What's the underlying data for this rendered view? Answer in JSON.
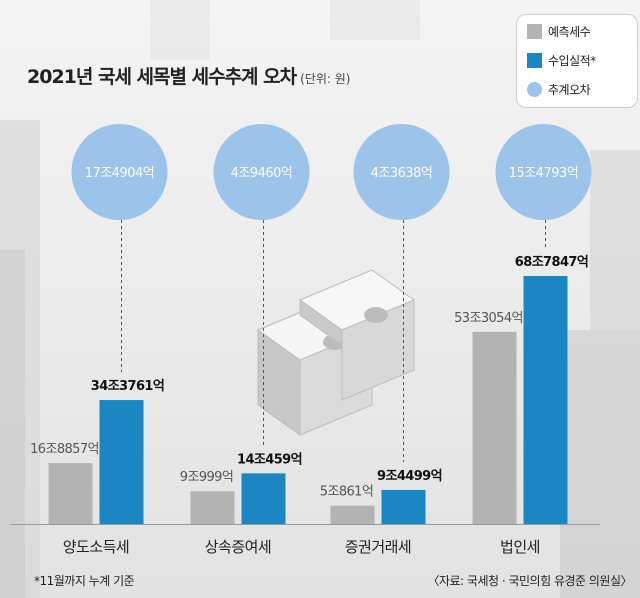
{
  "chart_data": {
    "type": "bar",
    "title": "2021년 국세 세목별 세수추계 오차",
    "unit_label": "(단위: 원)",
    "categories": [
      "양도소득세",
      "상속증여세",
      "증권거래세",
      "법인세"
    ],
    "series": [
      {
        "name": "예측세수",
        "color": "#b3b3b3",
        "values": [
          16.8857,
          9.0999,
          5.0861,
          53.3054
        ],
        "labels": [
          "16조8857억",
          "9조999억",
          "5조861억",
          "53조3054억"
        ]
      },
      {
        "name": "수입실적*",
        "color": "#1a87c2",
        "values": [
          34.3761,
          14.0459,
          9.4499,
          68.7847
        ],
        "labels": [
          "34조3761억",
          "14조459억",
          "9조4499억",
          "68조7847억"
        ]
      }
    ],
    "error_series": {
      "name": "추계오차",
      "color": "#9cc3e9",
      "values": [
        17.4904,
        4.946,
        4.3638,
        15.4793
      ],
      "labels": [
        "17조4904억",
        "4조9460억",
        "4조3638억",
        "15조4793억"
      ]
    },
    "ylim": [
      0,
      75
    ],
    "grid": false,
    "legend_position": "top-right"
  },
  "footnote": "*11월까지 누계 기준",
  "source": "〈자료: 국세청 · 국민의힘 유경준 의원실〉"
}
